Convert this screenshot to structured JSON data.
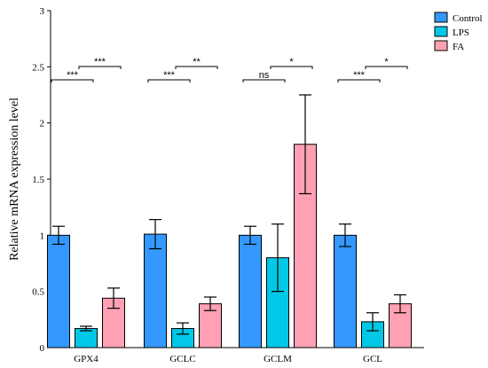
{
  "chart_data": {
    "type": "bar",
    "ylabel": "Relative mRNA expression level",
    "ylim": [
      0,
      3
    ],
    "yticks": [
      "0",
      "0.5",
      "1",
      "1.5",
      "2",
      "2.5",
      "3"
    ],
    "categories": [
      "GPX4",
      "GCLC",
      "GCLM",
      "GCL"
    ],
    "legend_position": "top-right",
    "series": [
      {
        "name": "Control",
        "color": "#3399ff",
        "values": [
          1.0,
          1.01,
          1.0,
          1.0
        ],
        "errors": [
          0.08,
          0.13,
          0.08,
          0.1
        ]
      },
      {
        "name": "LPS",
        "color": "#00c8e6",
        "values": [
          0.17,
          0.17,
          0.8,
          0.23
        ],
        "errors": [
          0.02,
          0.05,
          0.3,
          0.08
        ]
      },
      {
        "name": "FA",
        "color": "#ffa0b4",
        "values": [
          0.44,
          0.39,
          1.81,
          0.39
        ],
        "errors": [
          0.09,
          0.06,
          0.44,
          0.08
        ]
      }
    ],
    "significance": [
      {
        "category": "GPX4",
        "left": "***",
        "right": "***"
      },
      {
        "category": "GCLC",
        "left": "***",
        "right": "**"
      },
      {
        "category": "GCLM",
        "left": "ns",
        "right": "*"
      },
      {
        "category": "GCL",
        "left": "***",
        "right": "*"
      }
    ]
  }
}
